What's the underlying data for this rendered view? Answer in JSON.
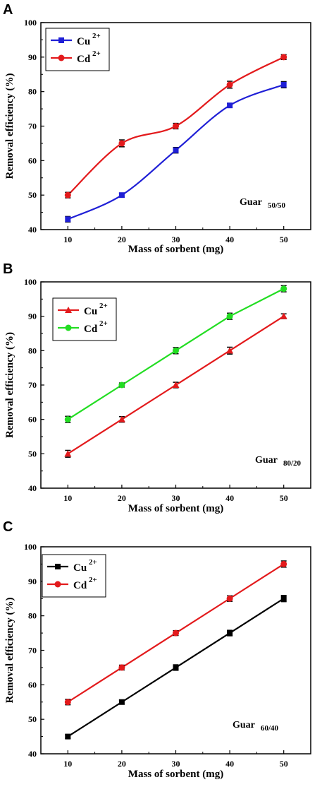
{
  "chart_data": [
    {
      "type": "line",
      "panel": "A",
      "xlabel": "Mass of sorbent (mg)",
      "ylabel": "Removal efficiency (%)",
      "x": [
        10,
        20,
        30,
        40,
        50
      ],
      "xlim": [
        5,
        55
      ],
      "ylim": [
        40,
        100
      ],
      "yticks": [
        40,
        50,
        60,
        70,
        80,
        90,
        100
      ],
      "annotation": {
        "main": "Guar",
        "sub": "50/50"
      },
      "legend_position": "top-left",
      "smooth": true,
      "series": [
        {
          "name": "Cu",
          "sup": "2+",
          "color": "#1f1fd6",
          "marker": "square",
          "values": [
            43,
            50,
            63,
            76,
            82
          ],
          "errors": [
            0.8,
            0.6,
            0.8,
            0.6,
            0.9
          ]
        },
        {
          "name": "Cd",
          "sup": "2+",
          "color": "#e31a1c",
          "marker": "circle",
          "values": [
            50,
            65,
            70,
            82,
            90
          ],
          "errors": [
            0.8,
            1.0,
            0.8,
            1.0,
            0.7
          ]
        }
      ]
    },
    {
      "type": "line",
      "panel": "B",
      "xlabel": "Mass of sorbent (mg)",
      "ylabel": "Removal efficiency (%)",
      "x": [
        10,
        20,
        30,
        40,
        50
      ],
      "xlim": [
        5,
        55
      ],
      "ylim": [
        40,
        100
      ],
      "yticks": [
        40,
        50,
        60,
        70,
        80,
        90,
        100
      ],
      "annotation": {
        "main": "Guar",
        "sub": "80/20"
      },
      "legend_position": "top-left",
      "smooth": false,
      "series": [
        {
          "name": "Cu",
          "sup": "2+",
          "color": "#e31a1c",
          "marker": "triangle",
          "values": [
            50,
            60,
            70,
            80,
            90
          ],
          "errors": [
            1.0,
            0.8,
            0.8,
            1.0,
            0.7
          ]
        },
        {
          "name": "Cd",
          "sup": "2+",
          "color": "#22dd22",
          "marker": "circle",
          "values": [
            60,
            70,
            80,
            90,
            98
          ],
          "errors": [
            0.9,
            0.6,
            0.9,
            0.9,
            0.9
          ]
        }
      ]
    },
    {
      "type": "line",
      "panel": "C",
      "xlabel": "Mass of sorbent (mg)",
      "ylabel": "Removal efficiency (%)",
      "x": [
        10,
        20,
        30,
        40,
        50
      ],
      "xlim": [
        5,
        55
      ],
      "ylim": [
        40,
        100
      ],
      "yticks": [
        40,
        50,
        60,
        70,
        80,
        90,
        100
      ],
      "annotation": {
        "main": "Guar",
        "sub": "60/40"
      },
      "legend_position": "top-left",
      "smooth": false,
      "series": [
        {
          "name": "Cu",
          "sup": "2+",
          "color": "#000000",
          "marker": "square",
          "values": [
            45,
            55,
            65,
            75,
            85
          ],
          "errors": [
            0.5,
            0.6,
            0.8,
            0.8,
            0.9
          ]
        },
        {
          "name": "Cd",
          "sup": "2+",
          "color": "#e31a1c",
          "marker": "circle",
          "values": [
            55,
            65,
            75,
            85,
            95
          ],
          "errors": [
            0.8,
            0.7,
            0.7,
            0.8,
            0.9
          ]
        }
      ]
    }
  ]
}
